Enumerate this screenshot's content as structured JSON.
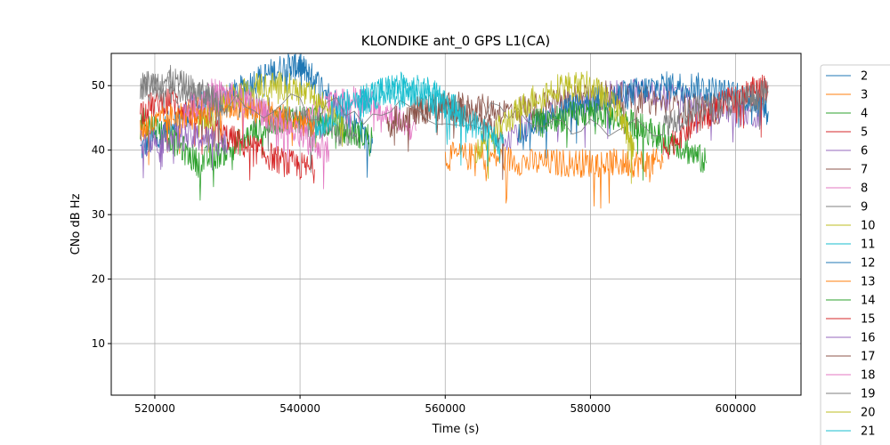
{
  "chart_data": {
    "type": "line",
    "title": "KLONDIKE ant_0 GPS L1(CA)",
    "xlabel": "Time (s)",
    "ylabel": "CNo dB Hz",
    "xlim": [
      514000,
      609000
    ],
    "ylim": [
      2,
      55
    ],
    "xticks": [
      520000,
      540000,
      560000,
      580000,
      600000
    ],
    "xtick_labels": [
      "520000",
      "540000",
      "560000",
      "580000",
      "600000"
    ],
    "yticks": [
      10,
      20,
      30,
      40,
      50
    ],
    "ytick_labels": [
      "10",
      "20",
      "30",
      "40",
      "50"
    ],
    "grid": true,
    "legend_position": "outside-right",
    "series_colors": [
      "#1f77b4",
      "#ff7f0e",
      "#2ca02c",
      "#d62728",
      "#9467bd",
      "#8c564b",
      "#e377c2",
      "#7f7f7f",
      "#bcbd22",
      "#17becf"
    ],
    "series": [
      {
        "name": "2",
        "x": [
          518000,
          522000,
          526000,
          530000,
          534000,
          538000,
          540000,
          542000,
          546000,
          550000
        ],
        "y": [
          40,
          44,
          47,
          48,
          51,
          53,
          53,
          51,
          46,
          41
        ]
      },
      {
        "name": "3",
        "x": [
          560000,
          566000,
          572000,
          578000,
          582000,
          586000,
          590000
        ],
        "y": [
          39,
          39,
          38,
          38,
          38,
          38,
          38
        ]
      },
      {
        "name": "4",
        "x": [
          518000,
          522000,
          526000,
          530000,
          534000,
          538000,
          542000,
          546000,
          550000
        ],
        "y": [
          45,
          42,
          38,
          40,
          43,
          45,
          45,
          43,
          42
        ]
      },
      {
        "name": "5",
        "x": [
          518000,
          522000,
          526000,
          530000,
          534000,
          538000,
          542000
        ],
        "y": [
          46,
          48,
          45,
          42,
          40,
          38,
          37
        ]
      },
      {
        "name": "6",
        "x": [
          568000,
          574000,
          580000,
          586000,
          592000,
          598000,
          604000
        ],
        "y": [
          42,
          45,
          48,
          49,
          48,
          46,
          45
        ]
      },
      {
        "name": "7",
        "x": [
          556000,
          562000,
          568000,
          574000,
          580000,
          586000,
          592000,
          598000
        ],
        "y": [
          46,
          47,
          46,
          47,
          49,
          48,
          47,
          46
        ]
      },
      {
        "name": "8",
        "x": [
          540000,
          544000,
          548000,
          552000,
          556000
        ],
        "y": [
          44,
          47,
          48,
          46,
          43
        ]
      },
      {
        "name": "9",
        "x": [
          518000,
          524000,
          530000,
          536000,
          542000,
          548000
        ],
        "y": [
          50,
          49,
          48,
          46,
          44,
          42
        ]
      },
      {
        "name": "10",
        "x": [
          526000,
          530000,
          534000,
          538000,
          542000,
          546000
        ],
        "y": [
          44,
          48,
          50,
          50,
          48,
          45
        ]
      },
      {
        "name": "11",
        "x": [
          542000,
          546000,
          550000,
          554000,
          558000,
          562000
        ],
        "y": [
          43,
          47,
          49,
          50,
          49,
          46
        ]
      },
      {
        "name": "12",
        "x": [
          570000,
          574000,
          578000,
          582000,
          586000,
          590000,
          594000,
          598000,
          602000,
          604500
        ],
        "y": [
          43,
          45,
          47,
          48,
          49,
          50,
          50,
          49,
          48,
          46
        ]
      },
      {
        "name": "13",
        "x": [
          518000,
          522000,
          526000,
          530000,
          534000,
          538000,
          542000
        ],
        "y": [
          43,
          45,
          46,
          47,
          46,
          45,
          44
        ]
      },
      {
        "name": "14",
        "x": [
          572000,
          576000,
          580000,
          584000,
          588000,
          592000,
          596000
        ],
        "y": [
          44,
          45,
          46,
          45,
          43,
          41,
          38
        ]
      },
      {
        "name": "15",
        "x": [
          590000,
          594000,
          598000,
          602000,
          604500
        ],
        "y": [
          40,
          44,
          47,
          49,
          50
        ]
      },
      {
        "name": "16",
        "x": [
          518000,
          522000,
          526000,
          530000
        ],
        "y": [
          41,
          42,
          42,
          41
        ]
      },
      {
        "name": "17",
        "x": [
          552000,
          556000,
          560000,
          564000,
          568000
        ],
        "y": [
          44,
          46,
          47,
          45,
          42
        ]
      },
      {
        "name": "18",
        "x": [
          524000,
          528000,
          532000,
          536000,
          540000,
          544000
        ],
        "y": [
          46,
          49,
          48,
          45,
          42,
          40
        ]
      },
      {
        "name": "19",
        "x": [
          518000,
          522000,
          526000,
          530000,
          590000,
          594000,
          598000,
          602000,
          604500
        ],
        "y": [
          50,
          51,
          49,
          47,
          44,
          46,
          47,
          48,
          49
        ]
      },
      {
        "name": "20",
        "x": [
          564000,
          568000,
          572000,
          576000,
          580000,
          584000,
          586000
        ],
        "y": [
          40,
          44,
          48,
          50,
          50,
          46,
          40
        ]
      },
      {
        "name": "21",
        "x": [
          548000,
          552000,
          556000,
          560000,
          564000,
          568000
        ],
        "y": [
          47,
          49,
          49,
          47,
          44,
          41
        ]
      }
    ]
  }
}
